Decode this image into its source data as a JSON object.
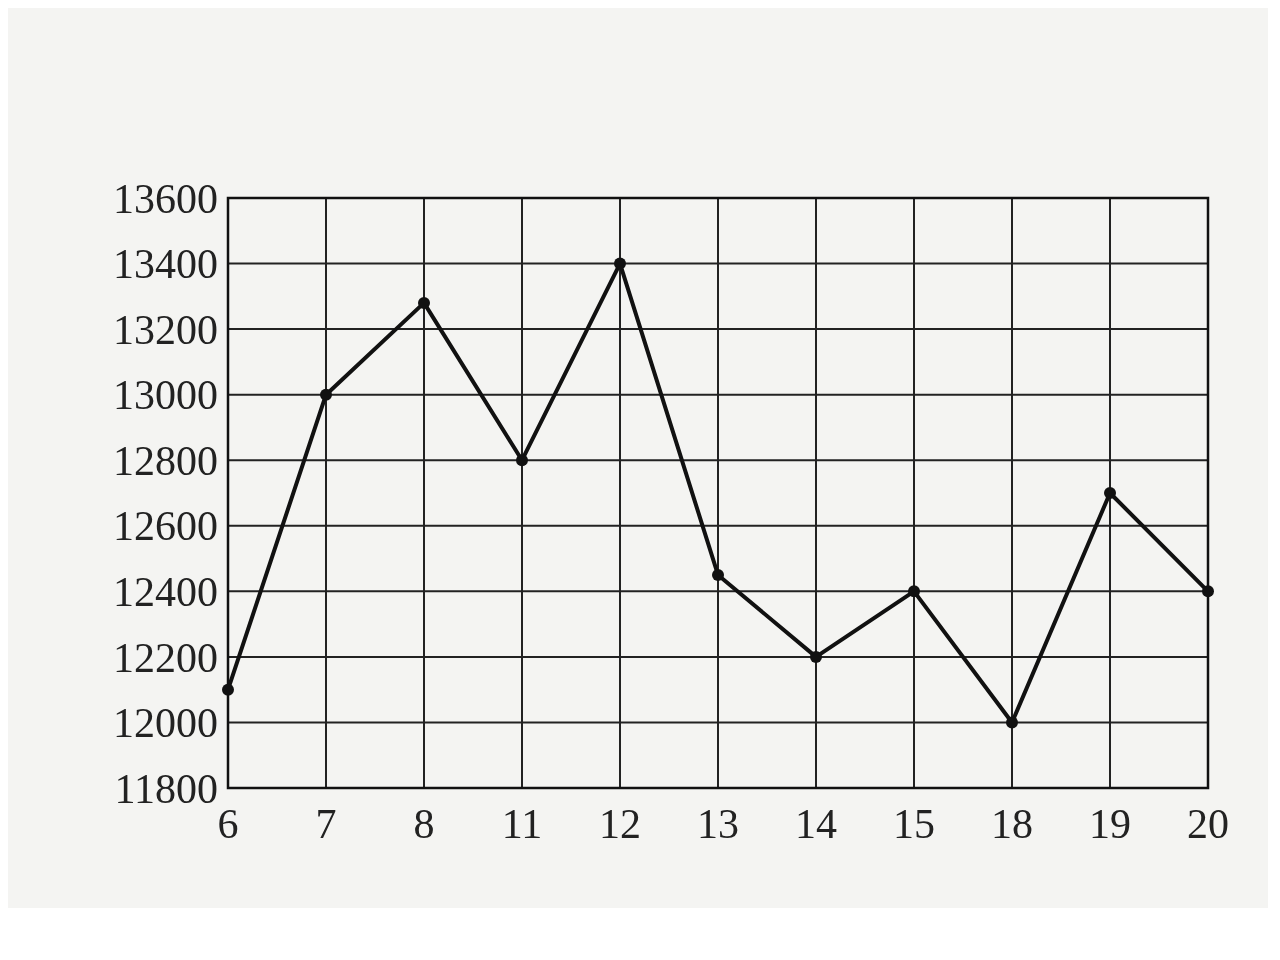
{
  "chart_data": {
    "type": "line",
    "categories": [
      "6",
      "7",
      "8",
      "11",
      "12",
      "13",
      "14",
      "15",
      "18",
      "19",
      "20"
    ],
    "series": [
      {
        "color": "#111111",
        "values": [
          12100,
          13000,
          13280,
          12800,
          13400,
          12450,
          12200,
          12400,
          12000,
          12700,
          12400
        ]
      }
    ],
    "ylim": [
      11800,
      13600
    ],
    "yticks": [
      11800,
      12000,
      12200,
      12400,
      12600,
      12800,
      13000,
      13200,
      13400,
      13600
    ],
    "grid": true,
    "marker": "circle",
    "line_style": "solid"
  }
}
